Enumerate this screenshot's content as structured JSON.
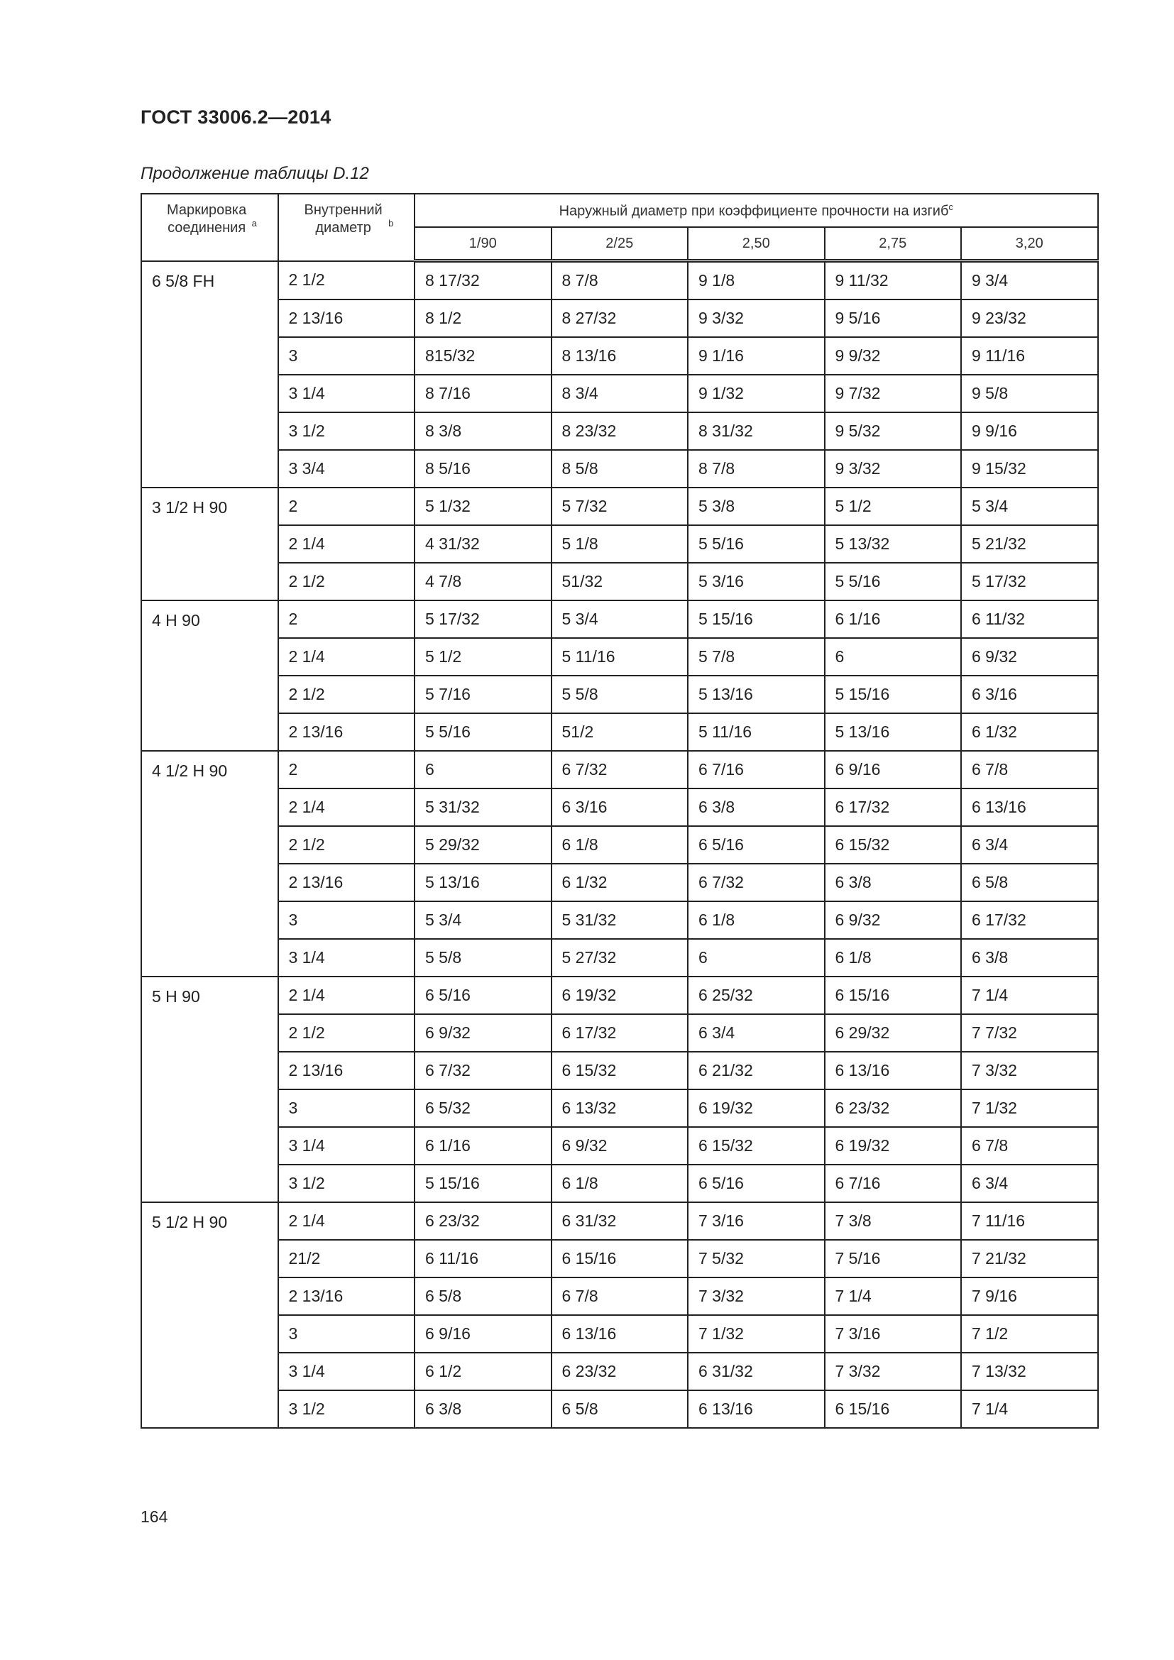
{
  "document": {
    "title": "ГОСТ 33006.2—2014",
    "caption": "Продолжение таблицы D.12",
    "page_number": "164"
  },
  "table": {
    "headers": {
      "col1": "Маркировка соединения",
      "col1_sup": "a",
      "col2": "Внутренний диаметр",
      "col2_sup": "b",
      "group": "Наружный диаметр при коэффициенте прочности на изгиб",
      "group_sup": "c",
      "sub": [
        "1/90",
        "2/25",
        "2,50",
        "2,75",
        "3,20"
      ]
    },
    "groups": [
      {
        "connection": "6 5/8 FH",
        "rows": [
          [
            "2 1/2",
            "8 17/32",
            "8 7/8",
            "9 1/8",
            "9 11/32",
            "9 3/4"
          ],
          [
            "2 13/16",
            "8 1/2",
            "8 27/32",
            "9 3/32",
            "9 5/16",
            "9 23/32"
          ],
          [
            "3",
            "815/32",
            "8 13/16",
            "9 1/16",
            "9 9/32",
            "9 11/16"
          ],
          [
            "3 1/4",
            "8 7/16",
            "8 3/4",
            "9 1/32",
            "9 7/32",
            "9 5/8"
          ],
          [
            "3 1/2",
            "8 3/8",
            "8 23/32",
            "8 31/32",
            "9 5/32",
            "9 9/16"
          ],
          [
            "3 3/4",
            "8 5/16",
            "8 5/8",
            "8 7/8",
            "9 3/32",
            "9 15/32"
          ]
        ]
      },
      {
        "connection": "3 1/2 H 90",
        "rows": [
          [
            "2",
            "5 1/32",
            "5 7/32",
            "5 3/8",
            "5 1/2",
            "5 3/4"
          ],
          [
            "2 1/4",
            "4 31/32",
            "5 1/8",
            "5 5/16",
            "5 13/32",
            "5 21/32"
          ],
          [
            "2 1/2",
            "4 7/8",
            "51/32",
            "5 3/16",
            "5 5/16",
            "5 17/32"
          ]
        ]
      },
      {
        "connection": "4 H 90",
        "rows": [
          [
            "2",
            "5 17/32",
            "5 3/4",
            "5 15/16",
            "6 1/16",
            "6 11/32"
          ],
          [
            "2 1/4",
            "5 1/2",
            "5 11/16",
            "5 7/8",
            "6",
            "6 9/32"
          ],
          [
            "2 1/2",
            "5 7/16",
            "5 5/8",
            "5 13/16",
            "5 15/16",
            "6 3/16"
          ],
          [
            "2 13/16",
            "5 5/16",
            "51/2",
            "5 11/16",
            "5 13/16",
            "6 1/32"
          ]
        ]
      },
      {
        "connection": "4 1/2 H 90",
        "rows": [
          [
            "2",
            "6",
            "6 7/32",
            "6 7/16",
            "6 9/16",
            "6 7/8"
          ],
          [
            "2 1/4",
            "5 31/32",
            "6 3/16",
            "6 3/8",
            "6 17/32",
            "6 13/16"
          ],
          [
            "2 1/2",
            "5 29/32",
            "6 1/8",
            "6 5/16",
            "6 15/32",
            "6 3/4"
          ],
          [
            "2 13/16",
            "5 13/16",
            "6 1/32",
            "6 7/32",
            "6 3/8",
            "6 5/8"
          ],
          [
            "3",
            "5 3/4",
            "5 31/32",
            "6 1/8",
            "6 9/32",
            "6 17/32"
          ],
          [
            "3 1/4",
            "5 5/8",
            "5 27/32",
            "6",
            "6 1/8",
            "6 3/8"
          ]
        ]
      },
      {
        "connection": "5 H 90",
        "rows": [
          [
            "2 1/4",
            "6 5/16",
            "6 19/32",
            "6 25/32",
            "6 15/16",
            "7 1/4"
          ],
          [
            "2 1/2",
            "6 9/32",
            "6 17/32",
            "6 3/4",
            "6 29/32",
            "7 7/32"
          ],
          [
            "2 13/16",
            "6 7/32",
            "6 15/32",
            "6 21/32",
            "6 13/16",
            "7 3/32"
          ],
          [
            "3",
            "6 5/32",
            "6 13/32",
            "6 19/32",
            "6 23/32",
            "7 1/32"
          ],
          [
            "3 1/4",
            "6 1/16",
            "6 9/32",
            "6 15/32",
            "6 19/32",
            "6 7/8"
          ],
          [
            "3 1/2",
            "5 15/16",
            "6 1/8",
            "6 5/16",
            "6 7/16",
            "6 3/4"
          ]
        ]
      },
      {
        "connection": "5 1/2 H 90",
        "rows": [
          [
            "2 1/4",
            "6 23/32",
            "6 31/32",
            "7 3/16",
            "7 3/8",
            "7 11/16"
          ],
          [
            "21/2",
            "6 11/16",
            "6 15/16",
            "7 5/32",
            "7 5/16",
            "7 21/32"
          ],
          [
            "2 13/16",
            "6 5/8",
            "6 7/8",
            "7 3/32",
            "7 1/4",
            "7 9/16"
          ],
          [
            "3",
            "6 9/16",
            "6 13/16",
            "7 1/32",
            "7 3/16",
            "7 1/2"
          ],
          [
            "3 1/4",
            "6 1/2",
            "6 23/32",
            "6 31/32",
            "7 3/32",
            "7 13/32"
          ],
          [
            "3 1/2",
            "6 3/8",
            "6 5/8",
            "6 13/16",
            "6 15/16",
            "7 1/4"
          ]
        ]
      }
    ]
  }
}
